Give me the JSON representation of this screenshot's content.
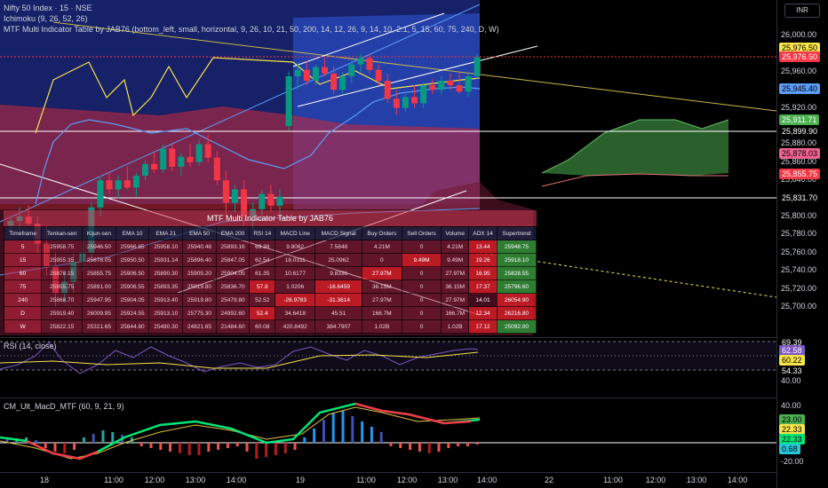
{
  "legends": {
    "main": "Nifty 50 Index · 15 · NSE",
    "ichimoku": "Ichimoku (9, 26, 52, 26)",
    "mtf": "MTF Multi Indicator Table by JAB76 (bottom_left, small, horizontal, 9, 26, 10, 21, 50, 200, 14, 12, 26, 9, 14, 10, 2.1, 5, 15, 60, 75, 240, D, W)",
    "rsi": "RSI (14, close)",
    "macd": "CM_Ult_MacD_MTF (60, 9, 21, 9)"
  },
  "currency": "INR",
  "price_axis_labels": [
    "26,000.00",
    "25,960.00",
    "25,920.00",
    "25,880.00",
    "25,860.00",
    "25,840.00",
    "25,820.00",
    "25,800.00",
    "25,780.00",
    "25,760.00",
    "25,740.00",
    "25,720.00",
    "25,700.00"
  ],
  "price_tags": [
    {
      "text": "25,976.50",
      "bg": "#f7e34a",
      "fg": "#000000"
    },
    {
      "text": "25,976.50",
      "bg": "#f23645",
      "fg": "#ffffff"
    },
    {
      "text": "25,945.40",
      "bg": "#5b9cf6",
      "fg": "#000000"
    },
    {
      "text": "25,911.71",
      "bg": "#4caf50",
      "fg": "#ffffff"
    },
    {
      "text": "25,899.90",
      "bg": "#000000",
      "fg": "#ffffff"
    },
    {
      "text": "25,878.03",
      "bg": "#f06292",
      "fg": "#000000"
    },
    {
      "text": "25,855.75",
      "bg": "#f23645",
      "fg": "#ffffff"
    },
    {
      "text": "25,831.70",
      "bg": "#000000",
      "fg": "#ffffff"
    }
  ],
  "rsi_axis": {
    "label": "40.00",
    "tags": [
      {
        "text": "69.39",
        "bg": "#000000",
        "fg": "#ffffff"
      },
      {
        "text": "62.58",
        "bg": "#7e57c2",
        "fg": "#ffffff"
      },
      {
        "text": "60.22",
        "bg": "#f7e34a",
        "fg": "#000000"
      },
      {
        "text": "54.33",
        "bg": "#000000",
        "fg": "#ffffff"
      }
    ]
  },
  "macd_axis": {
    "top": "40.00",
    "bottom": "-20.00",
    "tags": [
      {
        "text": "23.00",
        "bg": "#4caf50",
        "fg": "#000000"
      },
      {
        "text": "22.33",
        "bg": "#f7e34a",
        "fg": "#000000"
      },
      {
        "text": "22.33",
        "bg": "#00e676",
        "fg": "#000000"
      },
      {
        "text": "0.68",
        "bg": "#26c6da",
        "fg": "#000000"
      }
    ]
  },
  "time_labels": [
    "18",
    "11:00",
    "12:00",
    "13:00",
    "14:00",
    "19",
    "11:00",
    "12:00",
    "13:00",
    "14:00",
    "22",
    "11:00",
    "12:00",
    "13:00",
    "14:00"
  ],
  "table": {
    "title": "MTF Multi Indicator Table by JAB76",
    "headers": [
      "Timeframe",
      "Tenkan-sen",
      "Kijun-sen",
      "EMA 10",
      "EMA 21",
      "EMA 50",
      "EMA 200",
      "RSI 14",
      "MACD Line",
      "MACD Signal",
      "Buy Orders",
      "Sell Orders",
      "Volume",
      "ADX 14",
      "Supertrend"
    ],
    "rows": [
      [
        "5",
        "25958.75",
        "25946.50",
        "25966.85",
        "25958.10",
        "25940.48",
        "25893.16",
        "69.39",
        "9.8062",
        "7.5848",
        "4.21M",
        "0",
        "4.21M",
        "13.44",
        "25948.75"
      ],
      [
        "15",
        "25955.35",
        "25878.05",
        "25950.50",
        "25931.14",
        "25896.40",
        "25847.05",
        "62.54",
        "18.0311",
        "25.0962",
        "0",
        "9.49M",
        "9.49M",
        "19.26",
        "25918.10"
      ],
      [
        "60",
        "25878.15",
        "25855.75",
        "25906.50",
        "25890.30",
        "25905.20",
        "25904.05",
        "61.35",
        "10.6177",
        "9.8336",
        "27.97M",
        "0",
        "27.97M",
        "16.95",
        "25828.55"
      ],
      [
        "75",
        "25855.75",
        "25891.00",
        "25906.55",
        "25893.35",
        "25919.80",
        "25836.70",
        "57.8",
        "1.0206",
        "-16.6459",
        "36.15M",
        "0",
        "36.15M",
        "17.37",
        "25796.60"
      ],
      [
        "240",
        "25868.70",
        "25947.95",
        "25904.05",
        "25913.40",
        "25919.80",
        "25479.80",
        "52.52",
        "-26.9783",
        "-31.3614",
        "27.97M",
        "0",
        "27.97M",
        "14.01",
        "26054.90"
      ],
      [
        "D",
        "25919.40",
        "26009.95",
        "25924.55",
        "25913.10",
        "25775.30",
        "24992.60",
        "52.4",
        "34.6418",
        "45.51",
        "166.7M",
        "0",
        "166.7M",
        "12.34",
        "26216.80"
      ],
      [
        "W",
        "25822.15",
        "25321.65",
        "25844.80",
        "25480.30",
        "24821.65",
        "21484.60",
        "60.08",
        "420.8492",
        "384.7907",
        "1.02B",
        "0",
        "1.02B",
        "17.12",
        "25092.00"
      ]
    ],
    "row_styles": [
      [
        "c-tf",
        "c-n",
        "c-n",
        "c-n",
        "c-n",
        "c-n",
        "c-n",
        "c-n",
        "c-n",
        "c-n",
        "c-n",
        "c-n",
        "c-n",
        "c-red",
        "c-green"
      ],
      [
        "c-tf",
        "c-n",
        "c-n",
        "c-n",
        "c-n",
        "c-n",
        "c-n",
        "c-n",
        "c-n",
        "c-n",
        "c-n",
        "c-red",
        "c-n",
        "c-red",
        "c-green"
      ],
      [
        "c-tf",
        "c-n",
        "c-n",
        "c-n",
        "c-n",
        "c-n",
        "c-n",
        "c-n",
        "c-n",
        "c-n",
        "c-red",
        "c-n",
        "c-n",
        "c-red",
        "c-green"
      ],
      [
        "c-tf",
        "c-n",
        "c-n",
        "c-n",
        "c-n",
        "c-n",
        "c-n",
        "c-red",
        "c-n",
        "c-red",
        "c-n",
        "c-n",
        "c-n",
        "c-red",
        "c-green"
      ],
      [
        "c-tf",
        "c-n",
        "c-n",
        "c-n",
        "c-n",
        "c-n",
        "c-n",
        "c-n",
        "c-red",
        "c-red",
        "c-n",
        "c-n",
        "c-n",
        "c-dark",
        "c-red"
      ],
      [
        "c-tf",
        "c-n",
        "c-n",
        "c-n",
        "c-n",
        "c-n",
        "c-n",
        "c-red",
        "c-n",
        "c-n",
        "c-n",
        "c-n",
        "c-n",
        "c-red",
        "c-red"
      ],
      [
        "c-tf",
        "c-n",
        "c-n",
        "c-n",
        "c-n",
        "c-n",
        "c-n",
        "c-n",
        "c-n",
        "c-n",
        "c-n",
        "c-n",
        "c-n",
        "c-red",
        "c-green"
      ]
    ]
  },
  "candles": [
    {
      "o": 25790,
      "h": 25800,
      "l": 25780,
      "c": 25795
    },
    {
      "o": 25795,
      "h": 25810,
      "l": 25785,
      "c": 25800
    },
    {
      "o": 25800,
      "h": 25812,
      "l": 25790,
      "c": 25792
    },
    {
      "o": 25792,
      "h": 25800,
      "l": 25760,
      "c": 25770
    },
    {
      "o": 25770,
      "h": 25790,
      "l": 25735,
      "c": 25745
    },
    {
      "o": 25745,
      "h": 25760,
      "l": 25700,
      "c": 25715
    },
    {
      "o": 25715,
      "h": 25740,
      "l": 25705,
      "c": 25728
    },
    {
      "o": 25728,
      "h": 25760,
      "l": 25715,
      "c": 25750
    },
    {
      "o": 25750,
      "h": 25775,
      "l": 25740,
      "c": 25760
    },
    {
      "o": 25760,
      "h": 25815,
      "l": 25755,
      "c": 25810
    },
    {
      "o": 25810,
      "h": 25845,
      "l": 25800,
      "c": 25840
    },
    {
      "o": 25840,
      "h": 25850,
      "l": 25825,
      "c": 25830
    },
    {
      "o": 25830,
      "h": 25845,
      "l": 25820,
      "c": 25840
    },
    {
      "o": 25840,
      "h": 25855,
      "l": 25830,
      "c": 25832
    },
    {
      "o": 25832,
      "h": 25848,
      "l": 25822,
      "c": 25845
    },
    {
      "o": 25845,
      "h": 25862,
      "l": 25840,
      "c": 25858
    },
    {
      "o": 25858,
      "h": 25870,
      "l": 25848,
      "c": 25852
    },
    {
      "o": 25852,
      "h": 25880,
      "l": 25848,
      "c": 25875
    },
    {
      "o": 25875,
      "h": 25880,
      "l": 25850,
      "c": 25855
    },
    {
      "o": 25855,
      "h": 25870,
      "l": 25845,
      "c": 25866
    },
    {
      "o": 25866,
      "h": 25880,
      "l": 25855,
      "c": 25860
    },
    {
      "o": 25860,
      "h": 25885,
      "l": 25856,
      "c": 25880
    },
    {
      "o": 25880,
      "h": 25890,
      "l": 25860,
      "c": 25865
    },
    {
      "o": 25865,
      "h": 25872,
      "l": 25835,
      "c": 25840
    },
    {
      "o": 25840,
      "h": 25850,
      "l": 25800,
      "c": 25815
    },
    {
      "o": 25815,
      "h": 25835,
      "l": 25805,
      "c": 25830
    },
    {
      "o": 25830,
      "h": 25840,
      "l": 25790,
      "c": 25800
    },
    {
      "o": 25800,
      "h": 25815,
      "l": 25785,
      "c": 25808
    },
    {
      "o": 25808,
      "h": 25830,
      "l": 25795,
      "c": 25825
    },
    {
      "o": 25825,
      "h": 25835,
      "l": 25805,
      "c": 25812
    },
    {
      "o": 25812,
      "h": 25830,
      "l": 25800,
      "c": 25822
    },
    {
      "o": 25900,
      "h": 25960,
      "l": 25895,
      "c": 25955
    },
    {
      "o": 25955,
      "h": 25970,
      "l": 25940,
      "c": 25962
    },
    {
      "o": 25962,
      "h": 25972,
      "l": 25945,
      "c": 25950
    },
    {
      "o": 25950,
      "h": 25968,
      "l": 25945,
      "c": 25965
    },
    {
      "o": 25965,
      "h": 25975,
      "l": 25955,
      "c": 25958
    },
    {
      "o": 25958,
      "h": 25966,
      "l": 25935,
      "c": 25940
    },
    {
      "o": 25940,
      "h": 25960,
      "l": 25935,
      "c": 25955
    },
    {
      "o": 25955,
      "h": 25972,
      "l": 25948,
      "c": 25968
    },
    {
      "o": 25968,
      "h": 25980,
      "l": 25960,
      "c": 25975
    },
    {
      "o": 25975,
      "h": 25980,
      "l": 25958,
      "c": 25962
    },
    {
      "o": 25962,
      "h": 25968,
      "l": 25945,
      "c": 25950
    },
    {
      "o": 25950,
      "h": 25958,
      "l": 25925,
      "c": 25930
    },
    {
      "o": 25930,
      "h": 25940,
      "l": 25912,
      "c": 25920
    },
    {
      "o": 25920,
      "h": 25935,
      "l": 25915,
      "c": 25932
    },
    {
      "o": 25932,
      "h": 25945,
      "l": 25920,
      "c": 25925
    },
    {
      "o": 25925,
      "h": 25948,
      "l": 25920,
      "c": 25945
    },
    {
      "o": 25945,
      "h": 25952,
      "l": 25935,
      "c": 25940
    },
    {
      "o": 25940,
      "h": 25955,
      "l": 25935,
      "c": 25950
    },
    {
      "o": 25950,
      "h": 25958,
      "l": 25940,
      "c": 25945
    },
    {
      "o": 25945,
      "h": 25960,
      "l": 25935,
      "c": 25938
    },
    {
      "o": 25938,
      "h": 25958,
      "l": 25932,
      "c": 25955
    },
    {
      "o": 25955,
      "h": 25980,
      "l": 25952,
      "c": 25976
    }
  ]
}
